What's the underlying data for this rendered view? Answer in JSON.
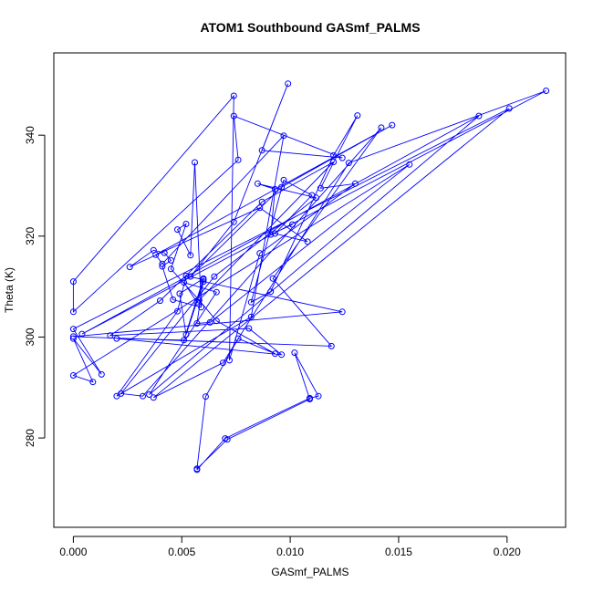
{
  "chart_data": {
    "type": "scatter",
    "mode": "lines+markers",
    "title": "ATOM1 Southbound GASmf_PALMS",
    "xlabel": "GASmf_PALMS",
    "ylabel": "Theta (K)",
    "xlim": [
      -0.0009,
      0.0227
    ],
    "ylim": [
      262.3,
      356.3
    ],
    "xticks": [
      0.0,
      0.005,
      0.01,
      0.015,
      0.02
    ],
    "xtick_labels": [
      "0.000",
      "0.005",
      "0.010",
      "0.015",
      "0.020"
    ],
    "yticks": [
      280,
      300,
      320,
      340
    ],
    "ytick_labels": [
      "280",
      "300",
      "320",
      "340"
    ],
    "grid": false,
    "legend": "none",
    "color": "#0000ff",
    "points": [
      [
        0.0057,
        273.7
      ],
      [
        0.007,
        279.9
      ],
      [
        0.0109,
        287.9
      ],
      [
        0.0113,
        288.3
      ],
      [
        0.0102,
        296.9
      ],
      [
        0.0109,
        287.7
      ],
      [
        0.0071,
        279.7
      ],
      [
        0.0057,
        273.9
      ],
      [
        0.0061,
        288.2
      ],
      [
        0.0076,
        299.7
      ],
      [
        0.0093,
        296.7
      ],
      [
        0.0066,
        303.2
      ],
      [
        0.0058,
        307.3
      ],
      [
        0.0045,
        313.5
      ],
      [
        0.0052,
        322.4
      ],
      [
        0.0048,
        321.3
      ],
      [
        0.0054,
        316.2
      ],
      [
        0.0056,
        334.6
      ],
      [
        0.0059,
        305.9
      ],
      [
        0.0046,
        307.4
      ],
      [
        0.0041,
        314.0
      ],
      [
        0.0045,
        315.2
      ],
      [
        0.0042,
        316.7
      ],
      [
        0.0037,
        317.2
      ],
      [
        0.0026,
        313.9
      ],
      [
        0.0086,
        325.6
      ],
      [
        0.0108,
        318.9
      ],
      [
        0.0093,
        320.5
      ],
      [
        0.011,
        328.1
      ],
      [
        0.0097,
        331.1
      ],
      [
        0.0082,
        306.9
      ],
      [
        0.0091,
        309.0
      ],
      [
        0.012,
        336.0
      ],
      [
        0.0131,
        343.9
      ],
      [
        0.0114,
        329.5
      ],
      [
        0.013,
        330.4
      ],
      [
        0.0086,
        316.6
      ],
      [
        0.0072,
        295.4
      ],
      [
        0.0074,
        347.8
      ],
      [
        0.0,
        311.0
      ],
      [
        0.0,
        305.0
      ],
      [
        0.0076,
        335.1
      ],
      [
        0.0074,
        343.8
      ],
      [
        0.0124,
        335.5
      ],
      [
        0.0087,
        337.0
      ],
      [
        0.0099,
        350.2
      ],
      [
        0.0074,
        322.8
      ],
      [
        0.0054,
        312.0
      ],
      [
        0.0096,
        329.7
      ],
      [
        0.0147,
        342.0
      ],
      [
        0.0038,
        316.3
      ],
      [
        0.0041,
        314.5
      ],
      [
        0.0097,
        339.9
      ],
      [
        0.0082,
        304.0
      ],
      [
        0.002,
        288.3
      ],
      [
        0.0048,
        305.1
      ],
      [
        0.0052,
        312.1
      ],
      [
        0.006,
        311.4
      ],
      [
        0.0057,
        302.7
      ],
      [
        0.0063,
        302.9
      ],
      [
        0.0155,
        334.2
      ],
      [
        0.0,
        292.4
      ],
      [
        0.0009,
        291.1
      ],
      [
        0.0,
        299.7
      ],
      [
        0.0013,
        292.6
      ],
      [
        0.0,
        301.6
      ],
      [
        0.0201,
        345.3
      ],
      [
        0.0037,
        288.0
      ],
      [
        0.0069,
        294.9
      ],
      [
        0.0127,
        334.5
      ],
      [
        0.0218,
        348.8
      ],
      [
        0.0004,
        300.6
      ],
      [
        0.0187,
        343.8
      ],
      [
        0.0035,
        288.6
      ],
      [
        0.0066,
        308.9
      ],
      [
        0.0051,
        310.8
      ],
      [
        0.0057,
        306.9
      ],
      [
        0.012,
        334.7
      ],
      [
        0.0087,
        326.8
      ],
      [
        0.004,
        307.2
      ],
      [
        0.0017,
        300.3
      ],
      [
        0.0081,
        301.7
      ],
      [
        0.0096,
        296.5
      ],
      [
        0.002,
        299.7
      ],
      [
        0.0051,
        299.4
      ],
      [
        0.006,
        311.6
      ],
      [
        0.0049,
        308.6
      ],
      [
        0.0052,
        300.5
      ],
      [
        0.006,
        311.0
      ],
      [
        0.0124,
        305.0
      ],
      [
        0.0,
        300.1
      ],
      [
        0.0119,
        298.2
      ],
      [
        0.0092,
        311.6
      ],
      [
        0.0142,
        341.5
      ],
      [
        0.0032,
        288.3
      ],
      [
        0.0022,
        288.8
      ],
      [
        0.0065,
        312.0
      ],
      [
        0.0112,
        327.6
      ],
      [
        0.0085,
        330.4
      ],
      [
        0.0093,
        329.3
      ],
      [
        0.0091,
        320.3
      ],
      [
        0.0101,
        322.3
      ]
    ]
  }
}
